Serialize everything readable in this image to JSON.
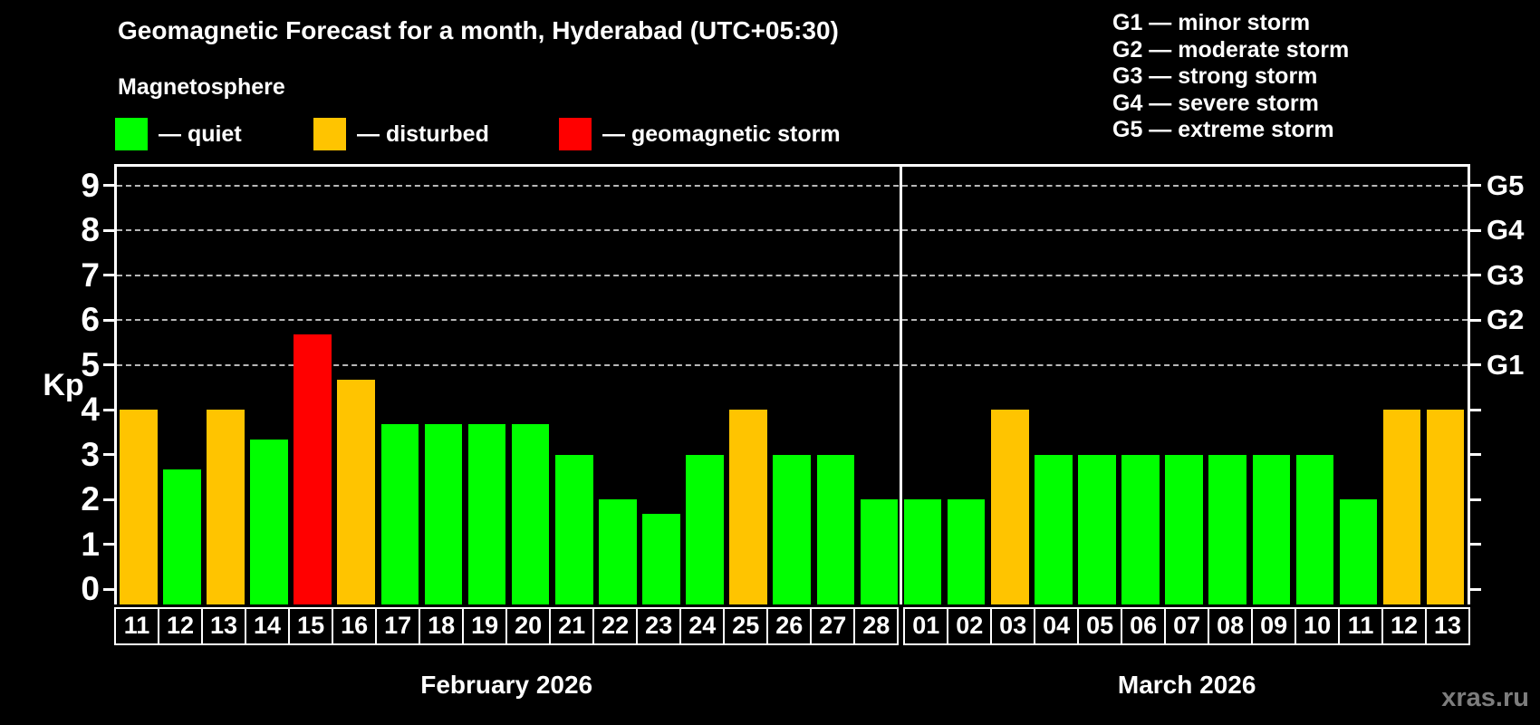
{
  "title": "Geomagnetic Forecast for a month, Hyderabad (UTC+05:30)",
  "subtitle": "Magnetosphere",
  "legend": {
    "items": [
      {
        "status": "quiet",
        "label": "— quiet",
        "color": "#00ff00"
      },
      {
        "status": "disturbed",
        "label": "— disturbed",
        "color": "#ffc400"
      },
      {
        "status": "storm",
        "label": "— geomagnetic storm",
        "color": "#ff0000"
      }
    ]
  },
  "g_scale_legend": [
    "G1 — minor storm",
    "G2 — moderate storm",
    "G3 — strong storm",
    "G4 — severe storm",
    "G5 — extreme storm"
  ],
  "y_axis": {
    "label": "Kp",
    "ticks": [
      0,
      1,
      2,
      3,
      4,
      5,
      6,
      7,
      8,
      9
    ]
  },
  "right_axis": {
    "labels": [
      {
        "kp": 9,
        "text": "G5"
      },
      {
        "kp": 8,
        "text": "G4"
      },
      {
        "kp": 7,
        "text": "G3"
      },
      {
        "kp": 6,
        "text": "G2"
      },
      {
        "kp": 5,
        "text": "G1"
      }
    ]
  },
  "watermark": "xras.ru",
  "chart_data": {
    "type": "bar",
    "title": "Geomagnetic Forecast for a month, Hyderabad (UTC+05:30)",
    "ylabel": "Kp",
    "ylim": [
      0,
      9
    ],
    "gridlines_at_kp": [
      5,
      6,
      7,
      8,
      9
    ],
    "legend_position": "top",
    "status_colors": {
      "quiet": "#00ff00",
      "disturbed": "#ffc400",
      "storm": "#ff0000"
    },
    "months": [
      {
        "label": "February 2026",
        "days": [
          {
            "day": "11",
            "kp": 4.0,
            "status": "disturbed"
          },
          {
            "day": "12",
            "kp": 2.67,
            "status": "quiet"
          },
          {
            "day": "13",
            "kp": 4.0,
            "status": "disturbed"
          },
          {
            "day": "14",
            "kp": 3.33,
            "status": "quiet"
          },
          {
            "day": "15",
            "kp": 5.67,
            "status": "storm"
          },
          {
            "day": "16",
            "kp": 4.67,
            "status": "disturbed"
          },
          {
            "day": "17",
            "kp": 3.67,
            "status": "quiet"
          },
          {
            "day": "18",
            "kp": 3.67,
            "status": "quiet"
          },
          {
            "day": "19",
            "kp": 3.67,
            "status": "quiet"
          },
          {
            "day": "20",
            "kp": 3.67,
            "status": "quiet"
          },
          {
            "day": "21",
            "kp": 3.0,
            "status": "quiet"
          },
          {
            "day": "22",
            "kp": 2.0,
            "status": "quiet"
          },
          {
            "day": "23",
            "kp": 1.67,
            "status": "quiet"
          },
          {
            "day": "24",
            "kp": 3.0,
            "status": "quiet"
          },
          {
            "day": "25",
            "kp": 4.0,
            "status": "disturbed"
          },
          {
            "day": "26",
            "kp": 3.0,
            "status": "quiet"
          },
          {
            "day": "27",
            "kp": 3.0,
            "status": "quiet"
          },
          {
            "day": "28",
            "kp": 2.0,
            "status": "quiet"
          }
        ]
      },
      {
        "label": "March 2026",
        "days": [
          {
            "day": "01",
            "kp": 2.0,
            "status": "quiet"
          },
          {
            "day": "02",
            "kp": 2.0,
            "status": "quiet"
          },
          {
            "day": "03",
            "kp": 4.0,
            "status": "disturbed"
          },
          {
            "day": "04",
            "kp": 3.0,
            "status": "quiet"
          },
          {
            "day": "05",
            "kp": 3.0,
            "status": "quiet"
          },
          {
            "day": "06",
            "kp": 3.0,
            "status": "quiet"
          },
          {
            "day": "07",
            "kp": 3.0,
            "status": "quiet"
          },
          {
            "day": "08",
            "kp": 3.0,
            "status": "quiet"
          },
          {
            "day": "09",
            "kp": 3.0,
            "status": "quiet"
          },
          {
            "day": "10",
            "kp": 3.0,
            "status": "quiet"
          },
          {
            "day": "11",
            "kp": 2.0,
            "status": "quiet"
          },
          {
            "day": "12",
            "kp": 4.0,
            "status": "disturbed"
          },
          {
            "day": "13",
            "kp": 4.0,
            "status": "disturbed"
          }
        ]
      }
    ]
  }
}
